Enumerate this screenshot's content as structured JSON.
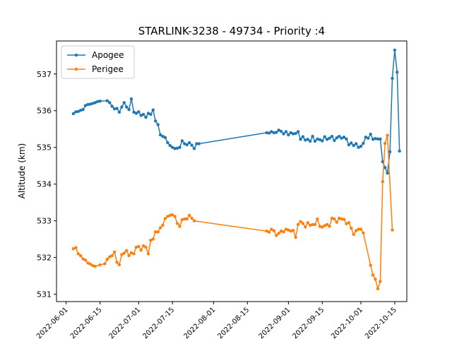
{
  "chart_data": {
    "type": "line",
    "title": "STARLINK-3238 - 49734 - Priority :4",
    "xlabel": "",
    "ylabel": "Altitude (km)",
    "xlim": [
      "2022-05-28",
      "2022-10-20"
    ],
    "ylim": [
      530.8,
      537.9
    ],
    "xticks": [
      "2022-06-01",
      "2022-06-15",
      "2022-07-01",
      "2022-07-15",
      "2022-08-01",
      "2022-08-15",
      "2022-09-01",
      "2022-09-15",
      "2022-10-01",
      "2022-10-15"
    ],
    "yticks": [
      531,
      532,
      533,
      534,
      535,
      536,
      537
    ],
    "grid": false,
    "legend": "top-left",
    "series": [
      {
        "name": "Apogee",
        "color": "#1f77b4",
        "points": [
          [
            "2022-06-04",
            535.92
          ],
          [
            "2022-06-05",
            535.97
          ],
          [
            "2022-06-06",
            535.98
          ],
          [
            "2022-06-07",
            536.01
          ],
          [
            "2022-06-08",
            536.03
          ],
          [
            "2022-06-09",
            536.14
          ],
          [
            "2022-06-10",
            536.17
          ],
          [
            "2022-06-11",
            536.18
          ],
          [
            "2022-06-12",
            536.2
          ],
          [
            "2022-06-13",
            536.22
          ],
          [
            "2022-06-14",
            536.25
          ],
          [
            "2022-06-15",
            536.26
          ],
          [
            "2022-06-18",
            536.27
          ],
          [
            "2022-06-19",
            536.22
          ],
          [
            "2022-06-20",
            536.12
          ],
          [
            "2022-06-21",
            536.05
          ],
          [
            "2022-06-22",
            536.06
          ],
          [
            "2022-06-23",
            535.96
          ],
          [
            "2022-06-24",
            536.1
          ],
          [
            "2022-06-25",
            536.22
          ],
          [
            "2022-06-26",
            536.1
          ],
          [
            "2022-06-27",
            536.03
          ],
          [
            "2022-06-28",
            536.32
          ],
          [
            "2022-06-29",
            535.96
          ],
          [
            "2022-06-30",
            535.93
          ],
          [
            "2022-07-01",
            535.97
          ],
          [
            "2022-07-02",
            535.87
          ],
          [
            "2022-07-03",
            535.9
          ],
          [
            "2022-07-04",
            535.82
          ],
          [
            "2022-07-05",
            535.93
          ],
          [
            "2022-07-06",
            535.9
          ],
          [
            "2022-07-07",
            536.02
          ],
          [
            "2022-07-08",
            535.72
          ],
          [
            "2022-07-09",
            535.62
          ],
          [
            "2022-07-10",
            535.34
          ],
          [
            "2022-07-11",
            535.3
          ],
          [
            "2022-07-12",
            535.27
          ],
          [
            "2022-07-13",
            535.13
          ],
          [
            "2022-07-14",
            535.05
          ],
          [
            "2022-07-15",
            535.0
          ],
          [
            "2022-07-16",
            534.97
          ],
          [
            "2022-07-17",
            534.98
          ],
          [
            "2022-07-18",
            535.0
          ],
          [
            "2022-07-19",
            535.18
          ],
          [
            "2022-07-20",
            535.1
          ],
          [
            "2022-07-21",
            535.07
          ],
          [
            "2022-07-22",
            535.13
          ],
          [
            "2022-07-23",
            535.06
          ],
          [
            "2022-07-24",
            534.97
          ],
          [
            "2022-07-25",
            535.1
          ],
          [
            "2022-07-26",
            535.1
          ],
          [
            "2022-08-23",
            535.4
          ],
          [
            "2022-08-24",
            535.39
          ],
          [
            "2022-08-25",
            535.43
          ],
          [
            "2022-08-26",
            535.4
          ],
          [
            "2022-08-27",
            535.41
          ],
          [
            "2022-08-28",
            535.47
          ],
          [
            "2022-08-29",
            535.44
          ],
          [
            "2022-08-30",
            535.37
          ],
          [
            "2022-08-31",
            535.43
          ],
          [
            "2022-09-01",
            535.34
          ],
          [
            "2022-09-02",
            535.4
          ],
          [
            "2022-09-03",
            535.37
          ],
          [
            "2022-09-04",
            535.38
          ],
          [
            "2022-09-05",
            535.43
          ],
          [
            "2022-09-06",
            535.22
          ],
          [
            "2022-09-07",
            535.29
          ],
          [
            "2022-09-08",
            535.2
          ],
          [
            "2022-09-09",
            535.22
          ],
          [
            "2022-09-10",
            535.17
          ],
          [
            "2022-09-11",
            535.3
          ],
          [
            "2022-09-12",
            535.17
          ],
          [
            "2022-09-13",
            535.23
          ],
          [
            "2022-09-14",
            535.21
          ],
          [
            "2022-09-15",
            535.18
          ],
          [
            "2022-09-16",
            535.29
          ],
          [
            "2022-09-17",
            535.22
          ],
          [
            "2022-09-18",
            535.25
          ],
          [
            "2022-09-19",
            535.3
          ],
          [
            "2022-09-20",
            535.19
          ],
          [
            "2022-09-21",
            535.26
          ],
          [
            "2022-09-22",
            535.3
          ],
          [
            "2022-09-23",
            535.25
          ],
          [
            "2022-09-24",
            535.28
          ],
          [
            "2022-09-25",
            535.23
          ],
          [
            "2022-09-26",
            535.07
          ],
          [
            "2022-09-27",
            535.12
          ],
          [
            "2022-09-28",
            535.05
          ],
          [
            "2022-09-29",
            535.1
          ],
          [
            "2022-09-30",
            535.0
          ],
          [
            "2022-10-01",
            535.03
          ],
          [
            "2022-10-02",
            535.11
          ],
          [
            "2022-10-03",
            535.28
          ],
          [
            "2022-10-04",
            535.25
          ],
          [
            "2022-10-05",
            535.36
          ],
          [
            "2022-10-06",
            535.22
          ],
          [
            "2022-10-07",
            535.24
          ],
          [
            "2022-10-08",
            535.23
          ],
          [
            "2022-10-09",
            535.23
          ],
          [
            "2022-10-10",
            534.61
          ],
          [
            "2022-10-11",
            534.45
          ],
          [
            "2022-10-12",
            534.3
          ],
          [
            "2022-10-13",
            534.88
          ],
          [
            "2022-10-14",
            536.88
          ],
          [
            "2022-10-15",
            537.65
          ],
          [
            "2022-10-16",
            537.05
          ],
          [
            "2022-10-17",
            534.9
          ]
        ]
      },
      {
        "name": "Perigee",
        "color": "#ff7f0e",
        "points": [
          [
            "2022-06-04",
            532.24
          ],
          [
            "2022-06-05",
            532.27
          ],
          [
            "2022-06-06",
            532.1
          ],
          [
            "2022-06-07",
            532.05
          ],
          [
            "2022-06-08",
            531.96
          ],
          [
            "2022-06-09",
            531.93
          ],
          [
            "2022-06-10",
            531.85
          ],
          [
            "2022-06-11",
            531.82
          ],
          [
            "2022-06-12",
            531.78
          ],
          [
            "2022-06-13",
            531.76
          ],
          [
            "2022-06-15",
            531.8
          ],
          [
            "2022-06-17",
            531.83
          ],
          [
            "2022-06-18",
            531.95
          ],
          [
            "2022-06-19",
            532.02
          ],
          [
            "2022-06-20",
            532.05
          ],
          [
            "2022-06-21",
            532.15
          ],
          [
            "2022-06-22",
            531.87
          ],
          [
            "2022-06-23",
            531.8
          ],
          [
            "2022-06-24",
            532.08
          ],
          [
            "2022-06-25",
            532.12
          ],
          [
            "2022-06-26",
            532.19
          ],
          [
            "2022-06-27",
            532.05
          ],
          [
            "2022-06-28",
            532.13
          ],
          [
            "2022-06-29",
            532.1
          ],
          [
            "2022-06-30",
            532.28
          ],
          [
            "2022-07-01",
            532.3
          ],
          [
            "2022-07-02",
            532.2
          ],
          [
            "2022-07-03",
            532.32
          ],
          [
            "2022-07-04",
            532.28
          ],
          [
            "2022-07-05",
            532.1
          ],
          [
            "2022-07-06",
            532.47
          ],
          [
            "2022-07-07",
            532.5
          ],
          [
            "2022-07-08",
            532.7
          ],
          [
            "2022-07-09",
            532.7
          ],
          [
            "2022-07-10",
            532.81
          ],
          [
            "2022-07-11",
            532.88
          ],
          [
            "2022-07-12",
            533.06
          ],
          [
            "2022-07-13",
            533.12
          ],
          [
            "2022-07-14",
            533.15
          ],
          [
            "2022-07-15",
            533.16
          ],
          [
            "2022-07-16",
            533.12
          ],
          [
            "2022-07-17",
            532.93
          ],
          [
            "2022-07-18",
            532.85
          ],
          [
            "2022-07-19",
            533.03
          ],
          [
            "2022-07-20",
            533.05
          ],
          [
            "2022-07-21",
            533.05
          ],
          [
            "2022-07-22",
            533.15
          ],
          [
            "2022-07-23",
            533.07
          ],
          [
            "2022-07-24",
            533.0
          ],
          [
            "2022-08-23",
            532.72
          ],
          [
            "2022-08-24",
            532.69
          ],
          [
            "2022-08-25",
            532.77
          ],
          [
            "2022-08-26",
            532.73
          ],
          [
            "2022-08-27",
            532.6
          ],
          [
            "2022-08-28",
            532.66
          ],
          [
            "2022-08-29",
            532.72
          ],
          [
            "2022-08-30",
            532.7
          ],
          [
            "2022-08-31",
            532.77
          ],
          [
            "2022-09-01",
            532.75
          ],
          [
            "2022-09-02",
            532.72
          ],
          [
            "2022-09-03",
            532.74
          ],
          [
            "2022-09-04",
            532.55
          ],
          [
            "2022-09-05",
            532.9
          ],
          [
            "2022-09-06",
            532.98
          ],
          [
            "2022-09-07",
            532.93
          ],
          [
            "2022-09-08",
            532.83
          ],
          [
            "2022-09-09",
            532.95
          ],
          [
            "2022-09-10",
            532.88
          ],
          [
            "2022-09-11",
            532.9
          ],
          [
            "2022-09-12",
            532.9
          ],
          [
            "2022-09-13",
            533.05
          ],
          [
            "2022-09-14",
            532.85
          ],
          [
            "2022-09-15",
            532.83
          ],
          [
            "2022-09-16",
            532.87
          ],
          [
            "2022-09-17",
            532.9
          ],
          [
            "2022-09-18",
            532.85
          ],
          [
            "2022-09-19",
            533.07
          ],
          [
            "2022-09-20",
            533.05
          ],
          [
            "2022-09-21",
            532.96
          ],
          [
            "2022-09-22",
            533.07
          ],
          [
            "2022-09-23",
            533.05
          ],
          [
            "2022-09-24",
            533.04
          ],
          [
            "2022-09-25",
            532.92
          ],
          [
            "2022-09-26",
            532.95
          ],
          [
            "2022-09-27",
            532.8
          ],
          [
            "2022-09-28",
            532.63
          ],
          [
            "2022-09-29",
            532.73
          ],
          [
            "2022-09-30",
            532.77
          ],
          [
            "2022-10-01",
            532.77
          ],
          [
            "2022-10-02",
            532.67
          ],
          [
            "2022-10-05",
            531.79
          ],
          [
            "2022-10-06",
            531.52
          ],
          [
            "2022-10-07",
            531.41
          ],
          [
            "2022-10-08",
            531.15
          ],
          [
            "2022-10-09",
            531.35
          ],
          [
            "2022-10-10",
            534.07
          ],
          [
            "2022-10-11",
            535.11
          ],
          [
            "2022-10-12",
            535.33
          ],
          [
            "2022-10-14",
            532.75
          ]
        ]
      }
    ]
  }
}
